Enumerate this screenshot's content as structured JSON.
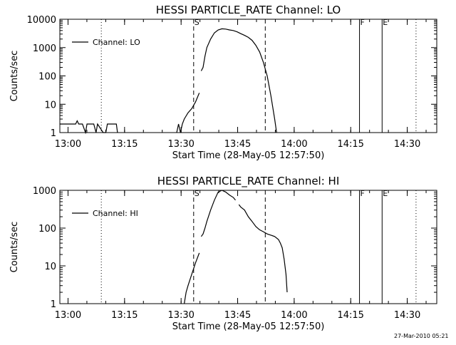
{
  "chart_data": [
    {
      "type": "line",
      "title": "HESSI PARTICLE_RATE Channel: LO",
      "xlabel": "Start Time (28-May-05 12:57:50)",
      "ylabel": "Counts/sec",
      "yscale": "log",
      "ylim": [
        1,
        10000
      ],
      "xlim_minutes": [
        0,
        100
      ],
      "x_ticks": [
        "13:00",
        "13:15",
        "13:30",
        "13:45",
        "14:00",
        "14:15",
        "14:30"
      ],
      "y_ticks": [
        "1",
        "10",
        "100",
        "1000",
        "10000"
      ],
      "legend": {
        "label": "Channel: LO",
        "position": "top-left"
      },
      "markers": [
        {
          "label": "S",
          "minute": 35.5,
          "style": "dashed"
        },
        {
          "label": "F",
          "minute": 79.5,
          "style": "solid"
        },
        {
          "label": "E",
          "minute": 85.5,
          "style": "solid"
        }
      ],
      "extra_lines": [
        {
          "minute": 11.0,
          "style": "dotted"
        },
        {
          "minute": 54.5,
          "style": "dashed"
        },
        {
          "minute": 94.5,
          "style": "dotted"
        }
      ],
      "series": [
        {
          "segments": [
            [
              [
                0,
                2
              ],
              [
                3,
                2
              ],
              [
                4.2,
                2
              ],
              [
                4.6,
                2.6
              ],
              [
                5,
                2
              ],
              [
                6,
                2
              ],
              [
                6.8,
                1
              ],
              [
                7.2,
                2
              ],
              [
                9,
                2
              ],
              [
                9.6,
                1
              ],
              [
                10,
                2
              ],
              [
                11.5,
                1
              ],
              [
                12.2,
                1
              ],
              [
                12.6,
                2
              ],
              [
                15,
                2
              ],
              [
                15.3,
                1
              ]
            ],
            [
              [
                31,
                1
              ],
              [
                31.5,
                2
              ],
              [
                32,
                1
              ],
              [
                32.5,
                2
              ],
              [
                33,
                3
              ],
              [
                34,
                5
              ],
              [
                35,
                7
              ],
              [
                36,
                12
              ],
              [
                37,
                25
              ]
            ],
            [
              [
                37.5,
                150
              ],
              [
                38,
                200
              ],
              [
                38.5,
                500
              ],
              [
                39,
                1000
              ],
              [
                40,
                2000
              ],
              [
                41,
                3300
              ],
              [
                42,
                4200
              ],
              [
                43,
                4600
              ],
              [
                44,
                4500
              ],
              [
                45,
                4200
              ],
              [
                46,
                4000
              ],
              [
                47,
                3600
              ],
              [
                48,
                3100
              ],
              [
                49,
                2700
              ],
              [
                50,
                2300
              ],
              [
                51,
                1800
              ],
              [
                52,
                1200
              ],
              [
                53,
                700
              ],
              [
                54,
                300
              ],
              [
                55,
                100
              ],
              [
                56,
                20
              ],
              [
                57,
                3
              ],
              [
                57.5,
                1
              ]
            ]
          ]
        }
      ]
    },
    {
      "type": "line",
      "title": "HESSI PARTICLE_RATE Channel: HI",
      "xlabel": "Start Time (28-May-05 12:57:50)",
      "ylabel": "Counts/sec",
      "yscale": "log",
      "ylim": [
        1,
        1000
      ],
      "xlim_minutes": [
        0,
        100
      ],
      "x_ticks": [
        "13:00",
        "13:15",
        "13:30",
        "13:45",
        "14:00",
        "14:15",
        "14:30"
      ],
      "y_ticks": [
        "1",
        "10",
        "100",
        "1000"
      ],
      "legend": {
        "label": "Channel: HI",
        "position": "top-left"
      },
      "markers": [
        {
          "label": "S",
          "minute": 35.5,
          "style": "dashed"
        },
        {
          "label": "F",
          "minute": 79.5,
          "style": "solid"
        },
        {
          "label": "E",
          "minute": 85.5,
          "style": "solid"
        }
      ],
      "extra_lines": [
        {
          "minute": 11.0,
          "style": "dotted"
        },
        {
          "minute": 54.5,
          "style": "dashed"
        },
        {
          "minute": 94.5,
          "style": "dotted"
        }
      ],
      "series": [
        {
          "segments": [
            [
              [
                33,
                1
              ],
              [
                33.5,
                2
              ],
              [
                34,
                3
              ],
              [
                35,
                6
              ],
              [
                36,
                12
              ],
              [
                37,
                22
              ]
            ],
            [
              [
                37.5,
                60
              ],
              [
                38,
                70
              ],
              [
                38.5,
                100
              ],
              [
                39,
                150
              ],
              [
                40,
                300
              ],
              [
                41,
                550
              ],
              [
                42,
                900
              ],
              [
                43,
                1000
              ],
              [
                44,
                900
              ],
              [
                45,
                750
              ],
              [
                46,
                650
              ],
              [
                46.6,
                550
              ]
            ],
            [
              [
                47.5,
                420
              ],
              [
                48,
                360
              ],
              [
                49,
                300
              ],
              [
                50,
                200
              ],
              [
                51,
                150
              ],
              [
                52,
                110
              ],
              [
                53,
                90
              ],
              [
                54,
                80
              ],
              [
                55,
                70
              ],
              [
                56,
                65
              ],
              [
                57,
                60
              ],
              [
                58,
                50
              ],
              [
                58.5,
                40
              ],
              [
                59,
                30
              ],
              [
                59.5,
                15
              ],
              [
                60,
                6
              ],
              [
                60.3,
                2
              ]
            ]
          ]
        }
      ]
    }
  ],
  "footer": {
    "timestamp": "27-Mar-2010 05:21"
  }
}
